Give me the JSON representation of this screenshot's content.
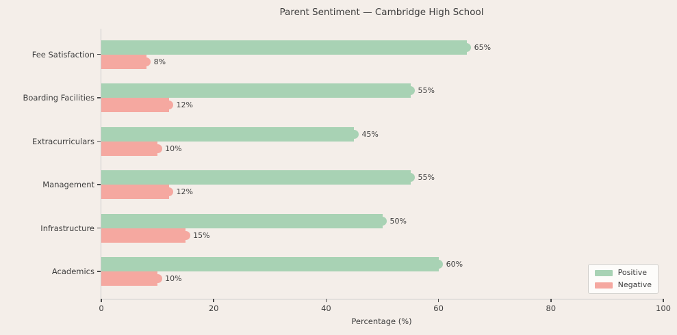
{
  "figure": {
    "background": "#f4eee9",
    "text_color": "#3d3d3d",
    "axis_color": "#cbcbcb",
    "tick_color": "#4a4a4a"
  },
  "chart_data": {
    "type": "bar",
    "orientation": "horizontal",
    "title": "Parent Sentiment — Cambridge High School",
    "xlabel": "Percentage (%)",
    "ylabel": "",
    "categories": [
      "Fee Satisfaction",
      "Boarding Facilities",
      "Extracurriculars",
      "Management",
      "Infrastructure",
      "Academics"
    ],
    "series": [
      {
        "name": "Positive",
        "color": "#a8d2b4",
        "values": [
          65,
          55,
          45,
          55,
          50,
          60
        ],
        "labels": [
          "65%",
          "55%",
          "45%",
          "55%",
          "50%",
          "60%"
        ]
      },
      {
        "name": "Negative",
        "color": "#f5a8a0",
        "values": [
          8,
          12,
          10,
          12,
          15,
          10
        ],
        "labels": [
          "8%",
          "12%",
          "10%",
          "12%",
          "15%",
          "10%"
        ]
      }
    ],
    "xlim": [
      0,
      100
    ],
    "xtick_values": [
      0,
      20,
      40,
      60,
      80,
      100
    ],
    "xtick_labels": [
      "0",
      "20",
      "40",
      "60",
      "80",
      "100"
    ],
    "grid": false,
    "bar_end_marker": "circle",
    "legend_position": "lower right"
  }
}
